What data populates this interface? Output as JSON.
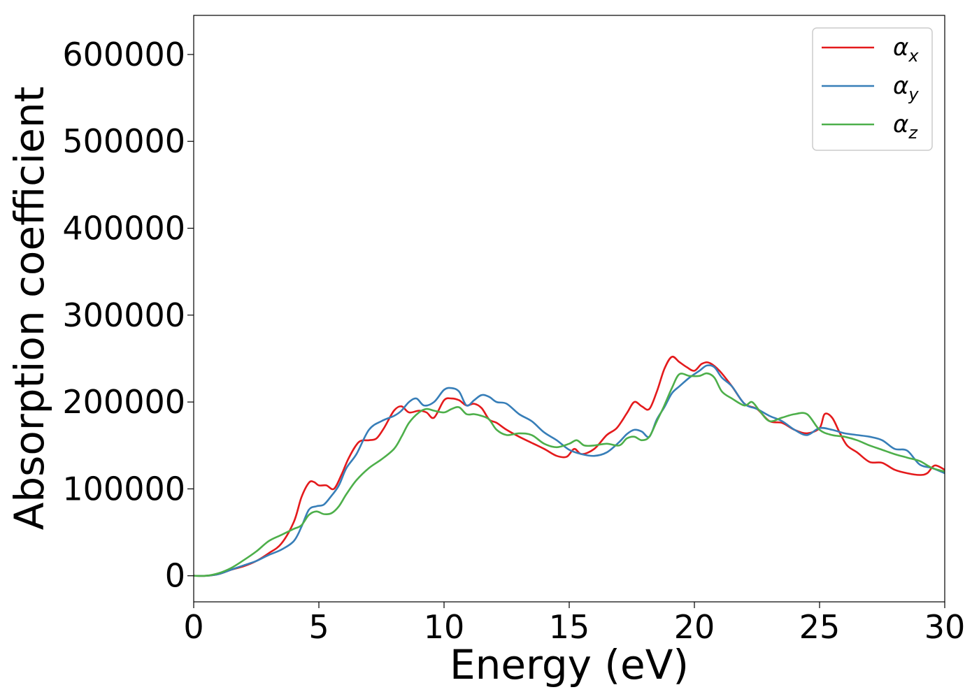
{
  "chart_data": {
    "type": "line",
    "xlabel": "Energy (eV)",
    "ylabel": "Absorption coefficient",
    "xlim": [
      0,
      30
    ],
    "ylim": [
      -30000,
      645000
    ],
    "xticks": [
      0,
      5,
      10,
      15,
      20,
      25,
      30
    ],
    "yticks": [
      0,
      100000,
      200000,
      300000,
      400000,
      500000,
      600000
    ],
    "xtick_labels": [
      "0",
      "5",
      "10",
      "15",
      "20",
      "25",
      "30"
    ],
    "ytick_labels": [
      "0",
      "100000",
      "200000",
      "300000",
      "400000",
      "500000",
      "600000"
    ],
    "grid": false,
    "legend_position": "top-right",
    "series": [
      {
        "name": "αx",
        "legend_main": "α",
        "legend_sub": "x",
        "color": "#e41a1c",
        "x": [
          0,
          0.5,
          1,
          1.5,
          2,
          2.5,
          3,
          3.5,
          4,
          4.3,
          4.6,
          4.8,
          5,
          5.3,
          5.6,
          5.9,
          6.2,
          6.6,
          7,
          7.3,
          7.6,
          8,
          8.3,
          8.6,
          9,
          9.3,
          9.6,
          10,
          10.3,
          10.6,
          10.9,
          11.2,
          11.5,
          11.8,
          12.1,
          12.5,
          13,
          13.5,
          14,
          14.5,
          14.9,
          15.2,
          15.5,
          16,
          16.5,
          16.9,
          17.3,
          17.6,
          17.9,
          18.2,
          18.5,
          18.8,
          19.1,
          19.4,
          19.7,
          20,
          20.3,
          20.6,
          21,
          21.5,
          22,
          22.5,
          23,
          23.5,
          24,
          24.5,
          25,
          25.2,
          25.5,
          25.8,
          26.1,
          26.5,
          27,
          27.5,
          28,
          28.5,
          29,
          29.3,
          29.6,
          30
        ],
        "values": [
          0,
          0,
          2000,
          7000,
          11000,
          17000,
          26000,
          37000,
          62000,
          90000,
          107000,
          108000,
          104000,
          104000,
          100000,
          116000,
          136000,
          154000,
          156000,
          158000,
          170000,
          190000,
          195000,
          188000,
          190000,
          188000,
          182000,
          202000,
          204000,
          202000,
          196000,
          198000,
          193000,
          180000,
          176000,
          168000,
          160000,
          153000,
          146000,
          138000,
          137000,
          146000,
          140000,
          146000,
          162000,
          170000,
          187000,
          200000,
          195000,
          192000,
          212000,
          238000,
          252000,
          246000,
          240000,
          236000,
          244000,
          245000,
          236000,
          218000,
          198000,
          192000,
          178000,
          176000,
          168000,
          164000,
          170000,
          186000,
          182000,
          165000,
          150000,
          142000,
          131000,
          130000,
          122000,
          118000,
          116000,
          118000,
          127000,
          122000
        ]
      },
      {
        "name": "αy",
        "legend_main": "α",
        "legend_sub": "y",
        "color": "#377eb8",
        "x": [
          0,
          0.5,
          1,
          1.5,
          2,
          2.5,
          3,
          3.5,
          4,
          4.3,
          4.6,
          4.9,
          5.2,
          5.5,
          5.8,
          6.1,
          6.5,
          7,
          7.5,
          8,
          8.3,
          8.6,
          8.9,
          9.2,
          9.6,
          10,
          10.3,
          10.6,
          10.9,
          11.2,
          11.5,
          11.8,
          12.1,
          12.5,
          13,
          13.5,
          14,
          14.5,
          15,
          15.5,
          16,
          16.5,
          17,
          17.3,
          17.6,
          17.9,
          18.2,
          18.5,
          18.8,
          19.1,
          19.4,
          19.8,
          20.2,
          20.5,
          20.8,
          21.1,
          21.5,
          22,
          22.5,
          23,
          23.5,
          24,
          24.5,
          25,
          25.5,
          26,
          26.5,
          27,
          27.5,
          28,
          28.5,
          29,
          29.5,
          30
        ],
        "values": [
          0,
          0,
          2000,
          7000,
          12000,
          17000,
          24000,
          30000,
          40000,
          56000,
          76000,
          80000,
          82000,
          92000,
          104000,
          124000,
          140000,
          168000,
          178000,
          184000,
          190000,
          200000,
          204000,
          196000,
          200000,
          214000,
          216000,
          212000,
          196000,
          202000,
          208000,
          206000,
          200000,
          198000,
          186000,
          178000,
          165000,
          156000,
          145000,
          140000,
          138000,
          142000,
          154000,
          163000,
          168000,
          166000,
          160000,
          180000,
          194000,
          210000,
          218000,
          228000,
          236000,
          242000,
          240000,
          228000,
          218000,
          198000,
          192000,
          184000,
          178000,
          168000,
          162000,
          170000,
          168000,
          164000,
          162000,
          160000,
          156000,
          146000,
          144000,
          128000,
          124000,
          118000
        ]
      },
      {
        "name": "αz",
        "legend_main": "α",
        "legend_sub": "z",
        "color": "#4daf4a",
        "x": [
          0,
          0.5,
          1,
          1.5,
          2,
          2.5,
          3,
          3.5,
          4,
          4.3,
          4.6,
          4.9,
          5.2,
          5.5,
          5.8,
          6.1,
          6.5,
          7,
          7.5,
          8,
          8.3,
          8.6,
          9,
          9.3,
          9.6,
          10,
          10.3,
          10.6,
          10.9,
          11.2,
          11.5,
          11.8,
          12.1,
          12.5,
          13,
          13.5,
          14,
          14.5,
          15,
          15.3,
          15.6,
          16,
          16.5,
          17,
          17.3,
          17.6,
          17.9,
          18.2,
          18.5,
          18.8,
          19.1,
          19.4,
          19.8,
          20.2,
          20.5,
          20.8,
          21.1,
          21.5,
          22,
          22.3,
          22.6,
          23,
          23.5,
          24,
          24.5,
          25,
          25.5,
          26,
          26.5,
          27,
          27.5,
          28,
          28.5,
          29,
          29.5,
          30
        ],
        "values": [
          0,
          0,
          3000,
          9000,
          18000,
          28000,
          40000,
          47000,
          54000,
          58000,
          70000,
          74000,
          71000,
          72000,
          80000,
          94000,
          110000,
          124000,
          134000,
          146000,
          160000,
          176000,
          188000,
          192000,
          190000,
          188000,
          192000,
          194000,
          186000,
          186000,
          184000,
          180000,
          168000,
          162000,
          164000,
          162000,
          152000,
          148000,
          152000,
          156000,
          150000,
          150000,
          152000,
          150000,
          158000,
          160000,
          156000,
          160000,
          178000,
          196000,
          216000,
          232000,
          230000,
          230000,
          233000,
          228000,
          212000,
          204000,
          196000,
          200000,
          190000,
          178000,
          182000,
          186000,
          186000,
          168000,
          162000,
          160000,
          156000,
          150000,
          145000,
          140000,
          136000,
          132000,
          124000,
          120000
        ]
      }
    ]
  }
}
